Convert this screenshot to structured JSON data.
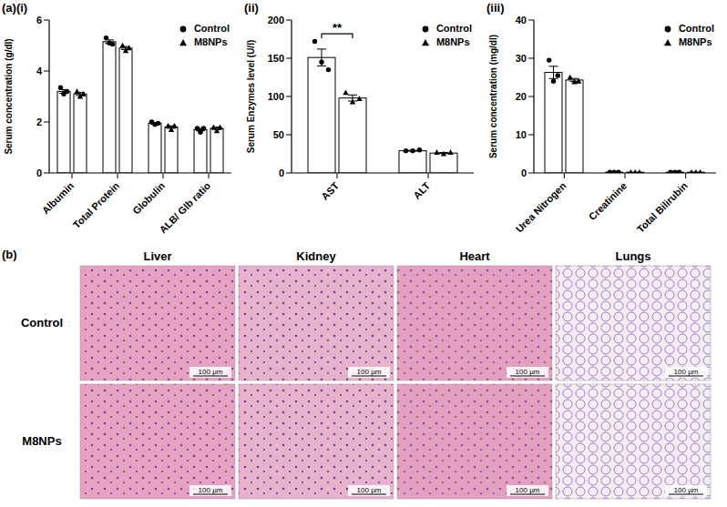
{
  "panel_label": "(a)",
  "chart_data": [
    {
      "type": "bar",
      "label": "(i)",
      "ylabel": "Serum concentration (g/dl)",
      "categories": [
        "Albumin",
        "Total Protein",
        "Globulin",
        "ALB/ Glb ratio"
      ],
      "series": [
        {
          "name": "Control",
          "color": "#000000",
          "marker": "circle",
          "values": [
            3.2,
            5.15,
            1.95,
            1.7
          ],
          "errors": [
            0.07,
            0.07,
            0.03,
            0.05
          ],
          "points": [
            [
              3.35,
              3.1,
              3.2
            ],
            [
              5.3,
              5.1,
              5.05
            ],
            [
              2.0,
              1.9,
              1.95
            ],
            [
              1.75,
              1.6,
              1.75
            ]
          ]
        },
        {
          "name": "M8NPs",
          "color": "#000000",
          "marker": "triangle",
          "values": [
            3.1,
            4.9,
            1.8,
            1.75
          ],
          "errors": [
            0.06,
            0.06,
            0.05,
            0.05
          ],
          "points": [
            [
              3.2,
              3.0,
              3.1
            ],
            [
              5.0,
              4.8,
              4.9
            ],
            [
              1.85,
              1.7,
              1.85
            ],
            [
              1.8,
              1.65,
              1.8
            ]
          ]
        }
      ],
      "ylim": [
        0,
        6
      ],
      "yticks": [
        0,
        2,
        4,
        6
      ],
      "grid": false,
      "legend": "upper right"
    },
    {
      "type": "bar",
      "label": "(ii)",
      "ylabel": "Serum Enzymes level (U/l)",
      "categories": [
        "AST",
        "ALT"
      ],
      "series": [
        {
          "name": "Control",
          "color": "#000000",
          "marker": "circle",
          "values": [
            151,
            29
          ],
          "errors": [
            11,
            0.5
          ],
          "points": [
            [
              172,
              145,
              135
            ],
            [
              29,
              29,
              30
            ]
          ]
        },
        {
          "name": "M8NPs",
          "color": "#000000",
          "marker": "triangle",
          "values": [
            98,
            26
          ],
          "errors": [
            4,
            0.7
          ],
          "points": [
            [
              105,
              93,
              97
            ],
            [
              27,
              25,
              27
            ]
          ]
        }
      ],
      "ylim": [
        0,
        200
      ],
      "yticks": [
        0,
        50,
        100,
        150,
        200
      ],
      "grid": false,
      "legend": "upper right",
      "annotations": [
        {
          "text": "**",
          "category": "AST",
          "between": [
            "Control",
            "M8NPs"
          ],
          "y": 182
        }
      ]
    },
    {
      "type": "bar",
      "label": "(iii)",
      "ylabel": "Serum concentration (mg/dl)",
      "categories": [
        "Urea Nitrogen",
        "Creatinine",
        "Total Bilirubin"
      ],
      "series": [
        {
          "name": "Control",
          "color": "#000000",
          "marker": "circle",
          "values": [
            26.3,
            0.2,
            0.2
          ],
          "errors": [
            1.6,
            0,
            0
          ],
          "points": [
            [
              29.5,
              24,
              25.5
            ],
            [
              0.2,
              0.2,
              0.2
            ],
            [
              0.2,
              0.2,
              0.2
            ]
          ]
        },
        {
          "name": "M8NPs",
          "color": "#000000",
          "marker": "triangle",
          "values": [
            24.3,
            0.2,
            0.2
          ],
          "errors": [
            0.4,
            0,
            0
          ],
          "points": [
            [
              25,
              23.8,
              24
            ],
            [
              0.2,
              0.2,
              0.2
            ],
            [
              0.2,
              0.2,
              0.2
            ]
          ]
        }
      ],
      "ylim": [
        0,
        40
      ],
      "yticks": [
        0,
        10,
        20,
        30,
        40
      ],
      "grid": false,
      "legend": "upper right"
    }
  ],
  "histology": {
    "label": "(b)",
    "columns": [
      "Liver",
      "Kidney",
      "Heart",
      "Lungs"
    ],
    "rows": [
      "Control",
      "M8NPs"
    ],
    "scale_bar": "100 µm"
  }
}
